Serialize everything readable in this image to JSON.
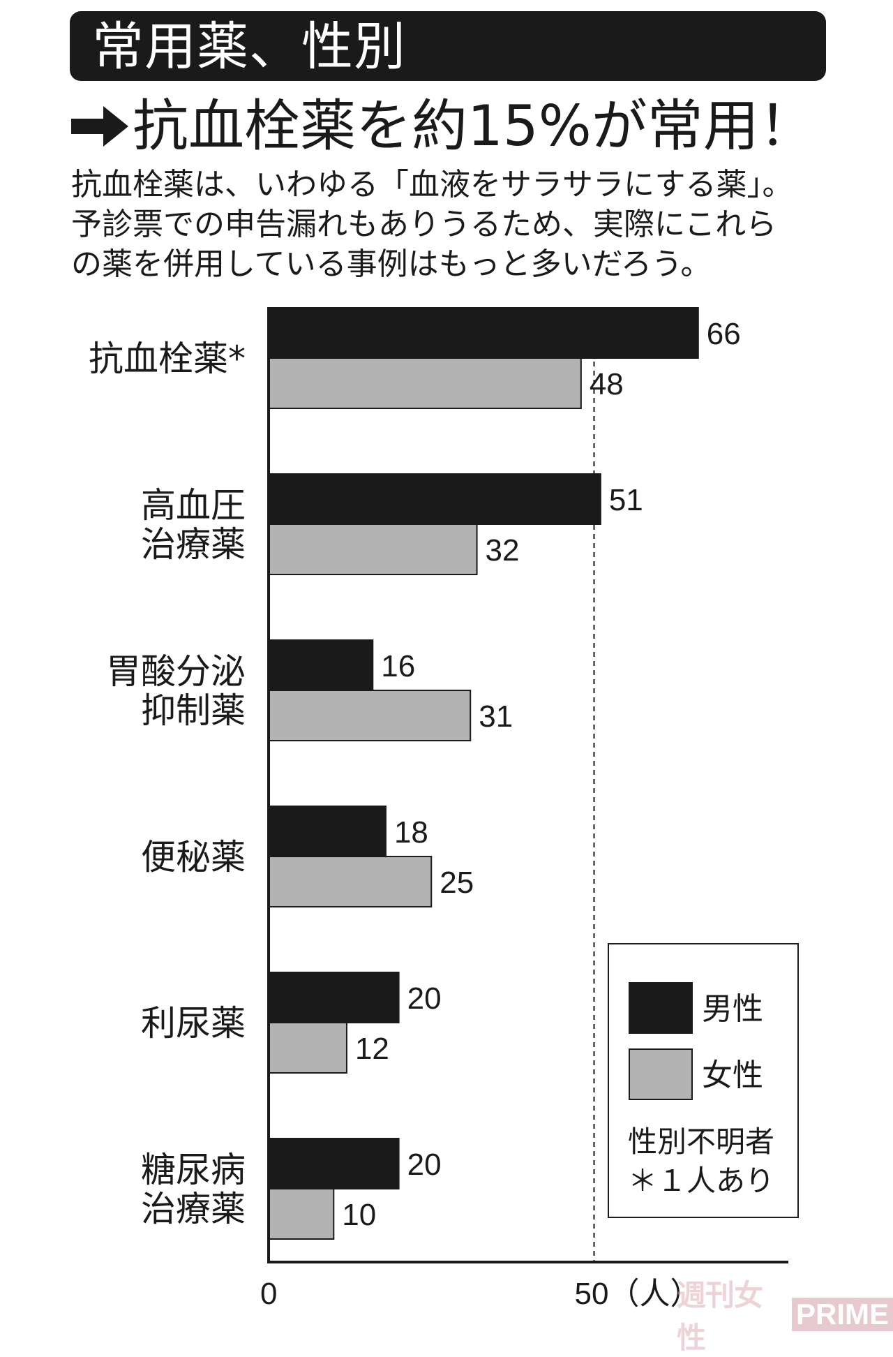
{
  "header": {
    "title": "常用薬、性別"
  },
  "headline": {
    "text": "抗血栓薬を約15%が常用！",
    "icon": "arrow-right-icon"
  },
  "description": {
    "lines": [
      "抗血栓薬は、いわゆる「血液をサラサラにする薬」。",
      "予診票での申告漏れもありうるため、実際にこれら",
      "の薬を併用している事例はもっと多いだろう。"
    ]
  },
  "chart_data": {
    "type": "bar",
    "orientation": "horizontal",
    "categories": [
      [
        "抗血栓薬*"
      ],
      [
        "高血圧",
        "治療薬"
      ],
      [
        "胃酸分泌",
        "抑制薬"
      ],
      [
        "便秘薬"
      ],
      [
        "利尿薬"
      ],
      [
        "糖尿病",
        "治療薬"
      ]
    ],
    "series": [
      {
        "name": "男性",
        "color": "#1a1a1a",
        "values": [
          66,
          51,
          16,
          18,
          20,
          20
        ]
      },
      {
        "name": "女性",
        "color": "#b3b3b3",
        "values": [
          48,
          32,
          31,
          25,
          12,
          10
        ]
      }
    ],
    "xlim": [
      0,
      80
    ],
    "xticks": [
      "0",
      "50（人）"
    ],
    "reference_line": 50,
    "legend": {
      "placement": "bottom-right",
      "note": [
        "性別不明者",
        "＊１人あり"
      ]
    }
  },
  "watermark": {
    "jp": "週刊女性",
    "en": "PRIME"
  }
}
